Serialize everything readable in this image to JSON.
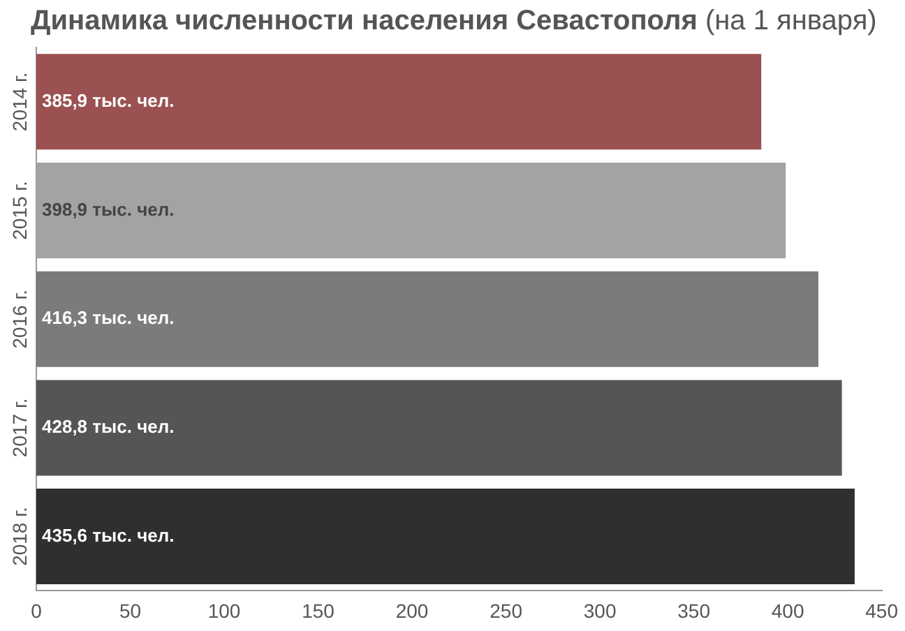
{
  "chart_data": {
    "type": "bar",
    "orientation": "horizontal",
    "title": "Динамика численности населения Севастополя",
    "subtitle": "(на 1 января)",
    "categories": [
      "2014 г.",
      "2015 г.",
      "2016 г.",
      "2017 г.",
      "2018 г."
    ],
    "values": [
      385.9,
      398.9,
      416.3,
      428.8,
      435.6
    ],
    "colors": [
      "#9b5151",
      "#a3a3a3",
      "#7b7b7b",
      "#555555",
      "#2f2f2f"
    ],
    "value_labels": [
      "385,9 тыс. чел.",
      "398,9 тыс. чел.",
      "416,3 тыс. чел.",
      "428,8 тыс. чел.",
      "435,6 тыс. чел."
    ],
    "xlim": [
      0,
      450
    ],
    "xticks": [
      0,
      50,
      100,
      150,
      200,
      250,
      300,
      350,
      400,
      450
    ],
    "grid": false,
    "legend": false
  }
}
